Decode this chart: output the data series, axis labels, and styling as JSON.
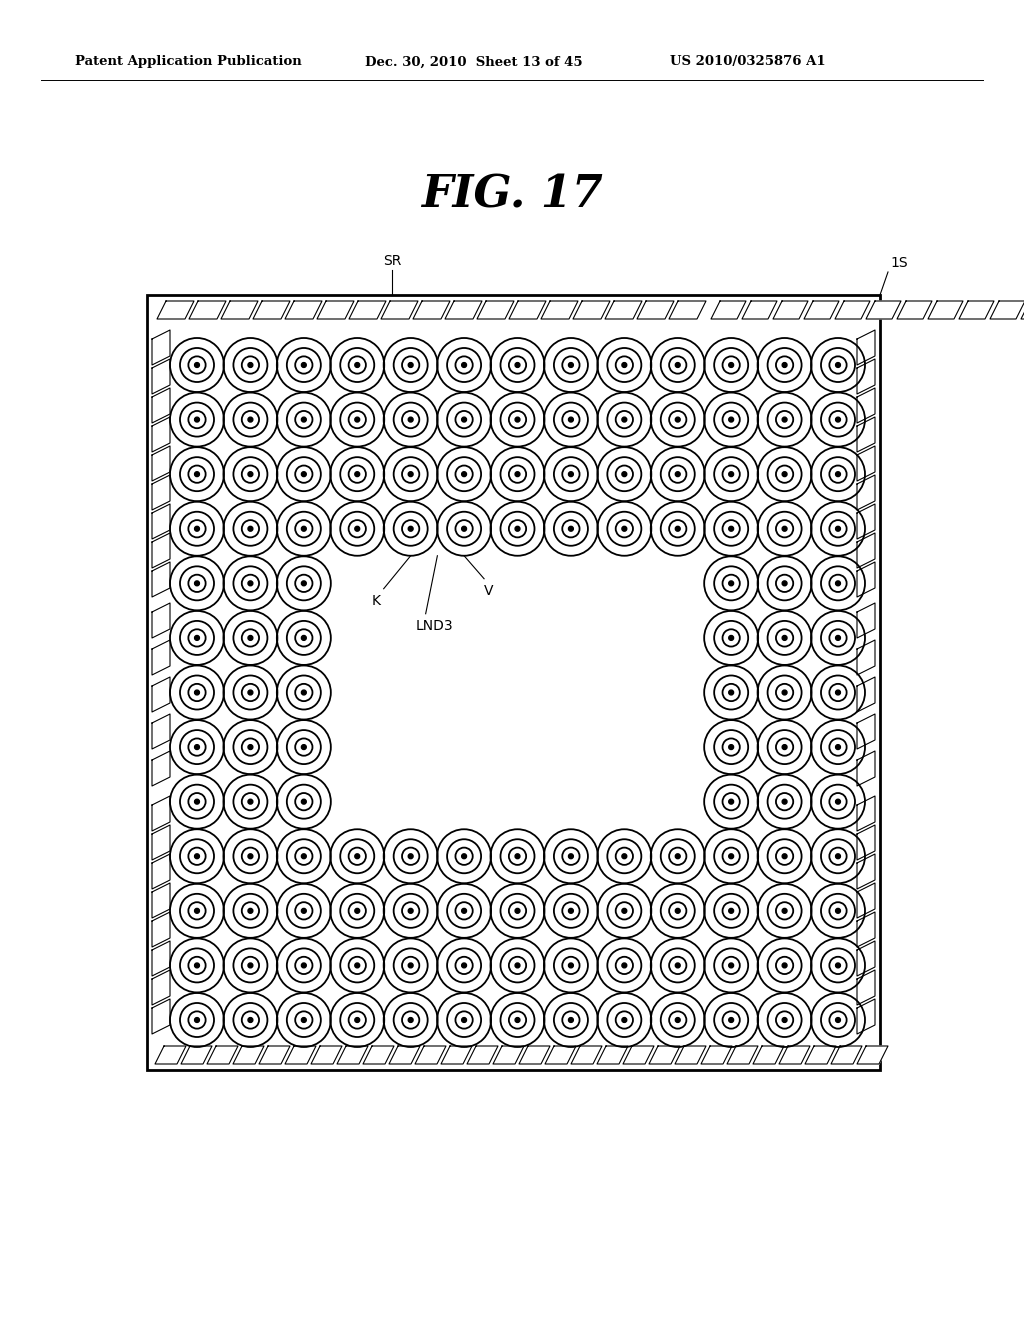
{
  "fig_title": "FIG. 17",
  "header_left": "Patent Application Publication",
  "header_mid": "Dec. 30, 2010  Sheet 13 of 45",
  "header_right": "US 2010/0325876 A1",
  "label_SR": "SR",
  "label_1S": "1S",
  "label_K": "K",
  "label_V": "V",
  "label_LND3": "LND3",
  "bg_color": "#ffffff",
  "line_color": "#000000"
}
